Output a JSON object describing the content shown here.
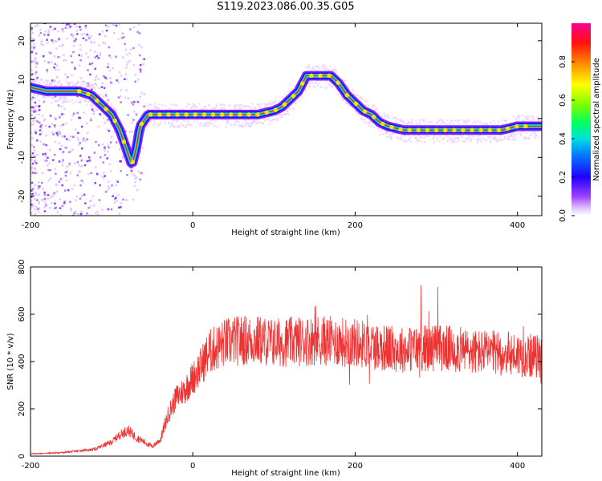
{
  "figure_title": "S119.2023.086.00.35.G05",
  "chart_data": [
    {
      "type": "heatmap",
      "title": "S119.2023.086.00.35.G05",
      "xlabel": "Height of straight line (km)",
      "ylabel": "Frequency (Hz)",
      "xlim": [
        -200,
        430
      ],
      "ylim": [
        -25,
        24.5
      ],
      "x_ticks": [
        -200,
        0,
        200,
        400
      ],
      "y_ticks": [
        -20,
        -10,
        0,
        10,
        20
      ],
      "grid": false,
      "colorbar": {
        "label": "Normalized spectral amplitude",
        "range": [
          0,
          1
        ],
        "ticks": [
          0.0,
          0.2,
          0.4,
          0.6,
          0.8
        ],
        "colors": [
          "#ffffff",
          "#c080ff",
          "#8000ff",
          "#0000ff",
          "#00c0ff",
          "#00ff80",
          "#80ff00",
          "#ffff00",
          "#ff8000",
          "#ff0000",
          "#ff0080"
        ]
      },
      "ridge": {
        "x": [
          -200,
          -180,
          -160,
          -140,
          -125,
          -110,
          -100,
          -90,
          -80,
          -75,
          -70,
          -65,
          -55,
          -40,
          -20,
          0,
          20,
          40,
          60,
          80,
          100,
          110,
          120,
          130,
          140,
          150,
          160,
          170,
          180,
          190,
          200,
          210,
          220,
          230,
          240,
          260,
          280,
          300,
          320,
          340,
          360,
          380,
          400,
          430
        ],
        "y": [
          8,
          7,
          7,
          7,
          6,
          3,
          1,
          -3,
          -9,
          -12,
          -8,
          -2,
          1,
          1,
          1,
          1,
          1,
          1,
          1,
          1,
          2,
          3,
          5,
          7,
          11,
          11,
          11,
          11,
          9,
          6,
          4,
          2,
          1,
          -1,
          -2,
          -3,
          -3,
          -3,
          -3,
          -3,
          -3,
          -3,
          -2,
          -2
        ]
      }
    },
    {
      "type": "line",
      "xlabel": "Height of straight line (km)",
      "ylabel": "SNR (10 * v/v)",
      "xlim": [
        -200,
        430
      ],
      "ylim": [
        0,
        800
      ],
      "x_ticks": [
        -200,
        0,
        200,
        400
      ],
      "y_ticks": [
        0,
        200,
        400,
        600,
        800
      ],
      "grid": false,
      "series": [
        {
          "color": "#ee3333",
          "envelope_x": [
            -200,
            -160,
            -120,
            -100,
            -90,
            -80,
            -70,
            -60,
            -50,
            -40,
            -30,
            -20,
            -10,
            0,
            10,
            20,
            40,
            60,
            80,
            100,
            150,
            200,
            250,
            300,
            350,
            400,
            430
          ],
          "envelope_y": [
            10,
            15,
            30,
            60,
            90,
            110,
            80,
            60,
            40,
            70,
            180,
            250,
            280,
            330,
            380,
            440,
            480,
            490,
            490,
            480,
            490,
            480,
            450,
            460,
            440,
            430,
            420
          ],
          "noise_fraction": 0.22
        }
      ]
    }
  ]
}
